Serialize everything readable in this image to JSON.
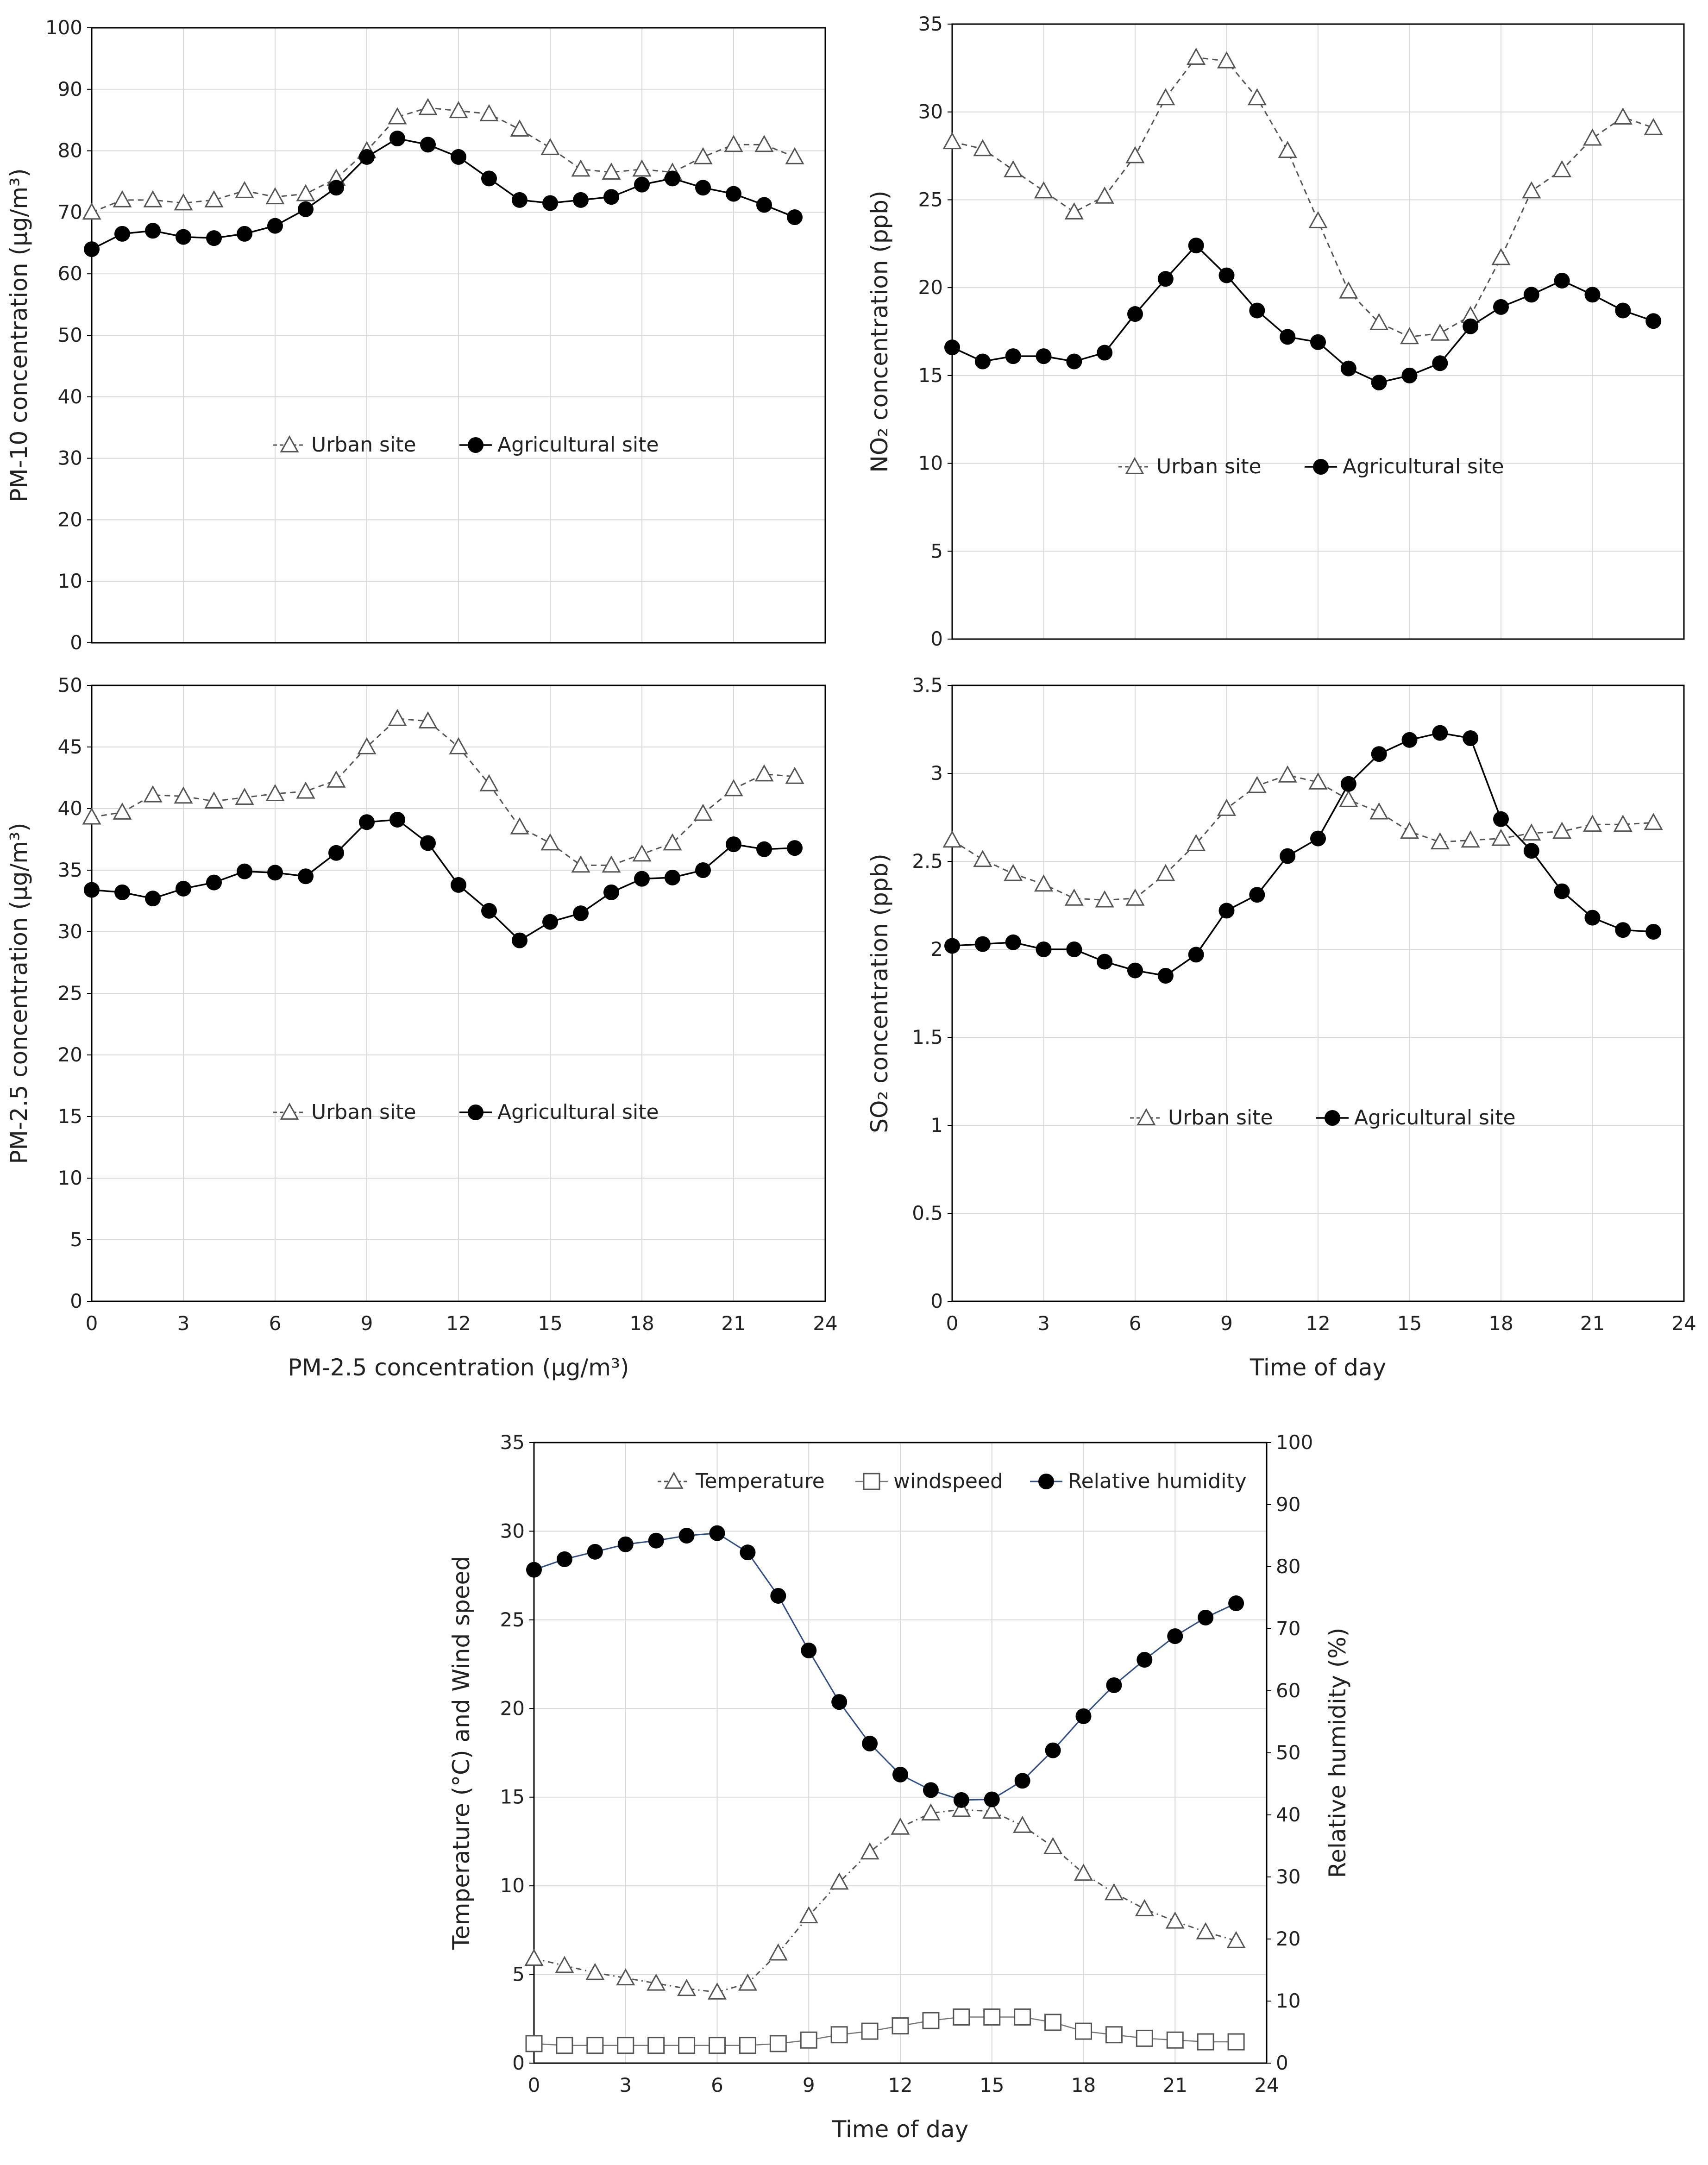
{
  "chart_data": [
    {
      "type": "line",
      "id": "pm10",
      "ylabel": "PM-10 concentration (µg/m³)",
      "xlabel": "",
      "ylim": [
        0,
        100
      ],
      "yticks": [
        0,
        10,
        20,
        30,
        40,
        50,
        60,
        70,
        80,
        90,
        100
      ],
      "xlim": [
        0,
        24
      ],
      "xticks": [],
      "legend": "middle",
      "series": [
        {
          "name": "Urban site",
          "marker": "triangle",
          "line": "dashed",
          "x": [
            0,
            1,
            2,
            3,
            4,
            5,
            6,
            7,
            8,
            9,
            10,
            11,
            12,
            13,
            14,
            15,
            16,
            17,
            18,
            19,
            20,
            21,
            22,
            23
          ],
          "values": [
            70,
            72,
            72,
            71.5,
            72,
            73.5,
            72.5,
            73,
            75.5,
            80,
            85.5,
            87,
            86.5,
            86,
            83.5,
            80.5,
            77,
            76.5,
            77,
            76.5,
            79,
            81,
            81,
            79
          ]
        },
        {
          "name": "Agricultural site",
          "marker": "circle",
          "line": "solid",
          "x": [
            0,
            1,
            2,
            3,
            4,
            5,
            6,
            7,
            8,
            9,
            10,
            11,
            12,
            13,
            14,
            15,
            16,
            17,
            18,
            19,
            20,
            21,
            22,
            23
          ],
          "values": [
            64,
            66.5,
            67,
            66,
            65.8,
            66.5,
            67.8,
            70.5,
            74,
            79,
            82,
            81,
            79,
            75.5,
            72,
            71.5,
            72,
            72.5,
            74.5,
            75.5,
            74,
            73,
            71.2,
            69.2
          ]
        }
      ]
    },
    {
      "type": "line",
      "id": "no2",
      "ylabel": "NO₂ concentration (ppb)",
      "xlabel": "",
      "ylim": [
        0,
        35
      ],
      "yticks": [
        0,
        5,
        10,
        15,
        20,
        25,
        30,
        35
      ],
      "xlim": [
        0,
        24
      ],
      "xticks": [],
      "legend": "middle",
      "series": [
        {
          "name": "Urban site",
          "marker": "triangle",
          "line": "dashed",
          "x": [
            0,
            1,
            2,
            3,
            4,
            5,
            6,
            7,
            8,
            9,
            10,
            11,
            12,
            13,
            14,
            15,
            16,
            17,
            18,
            19,
            20,
            21,
            22,
            23
          ],
          "values": [
            28.3,
            27.9,
            26.7,
            25.5,
            24.3,
            25.2,
            27.5,
            30.8,
            33.1,
            32.9,
            30.8,
            27.8,
            23.8,
            19.8,
            18,
            17.2,
            17.4,
            18.4,
            21.7,
            25.5,
            26.7,
            28.5,
            29.7,
            29.1
          ]
        },
        {
          "name": "Agricultural site",
          "marker": "circle",
          "line": "solid",
          "x": [
            0,
            1,
            2,
            3,
            4,
            5,
            6,
            7,
            8,
            9,
            10,
            11,
            12,
            13,
            14,
            15,
            16,
            17,
            18,
            19,
            20,
            21,
            22,
            23
          ],
          "values": [
            16.6,
            15.8,
            16.1,
            16.1,
            15.8,
            16.3,
            18.5,
            20.5,
            22.4,
            20.7,
            18.7,
            17.2,
            16.9,
            15.4,
            14.6,
            15,
            15.7,
            17.8,
            18.9,
            19.6,
            20.4,
            19.6,
            18.7,
            18.1
          ]
        }
      ]
    },
    {
      "type": "line",
      "id": "pm25",
      "ylabel": "PM-2.5 concentration (µg/m³)",
      "xlabel": "PM-2.5 concentration (µg/m³)",
      "ylim": [
        0,
        50
      ],
      "yticks": [
        0,
        5,
        10,
        15,
        20,
        25,
        30,
        35,
        40,
        45,
        50
      ],
      "xlim": [
        0,
        24
      ],
      "xticks": [
        0,
        3,
        6,
        9,
        12,
        15,
        18,
        21,
        24
      ],
      "legend": "middle",
      "series": [
        {
          "name": "Urban site",
          "marker": "triangle",
          "line": "dashed",
          "x": [
            0,
            1,
            2,
            3,
            4,
            5,
            6,
            7,
            8,
            9,
            10,
            11,
            12,
            13,
            14,
            15,
            16,
            17,
            18,
            19,
            20,
            21,
            22,
            23
          ],
          "values": [
            39.3,
            39.7,
            41.1,
            41,
            40.6,
            40.9,
            41.2,
            41.4,
            42.3,
            45,
            47.3,
            47.1,
            45,
            42,
            38.5,
            37.2,
            35.4,
            35.4,
            36.3,
            37.2,
            39.6,
            41.6,
            42.8,
            42.6
          ]
        },
        {
          "name": "Agricultural site",
          "marker": "circle",
          "line": "solid",
          "x": [
            0,
            1,
            2,
            3,
            4,
            5,
            6,
            7,
            8,
            9,
            10,
            11,
            12,
            13,
            14,
            15,
            16,
            17,
            18,
            19,
            20,
            21,
            22,
            23
          ],
          "values": [
            33.4,
            33.2,
            32.7,
            33.5,
            34,
            34.9,
            34.8,
            34.5,
            36.4,
            38.9,
            39.1,
            37.2,
            33.8,
            31.7,
            29.3,
            30.8,
            31.5,
            33.2,
            34.3,
            34.4,
            35,
            37.1,
            36.7,
            36.8
          ]
        }
      ]
    },
    {
      "type": "line",
      "id": "so2",
      "ylabel": "SO₂ concentration (ppb)",
      "xlabel": "Time of day",
      "ylim": [
        0,
        3.5
      ],
      "yticks": [
        0,
        0.5,
        1,
        1.5,
        2,
        2.5,
        3,
        3.5
      ],
      "xlim": [
        0,
        24
      ],
      "xticks": [
        0,
        3,
        6,
        9,
        12,
        15,
        18,
        21,
        24
      ],
      "legend": "middle",
      "series": [
        {
          "name": "Urban site",
          "marker": "triangle",
          "line": "dashed",
          "x": [
            0,
            1,
            2,
            3,
            4,
            5,
            6,
            7,
            8,
            9,
            10,
            11,
            12,
            13,
            14,
            15,
            16,
            17,
            18,
            19,
            20,
            21,
            22,
            23
          ],
          "values": [
            2.62,
            2.51,
            2.43,
            2.37,
            2.29,
            2.28,
            2.29,
            2.43,
            2.6,
            2.8,
            2.93,
            2.99,
            2.95,
            2.85,
            2.78,
            2.67,
            2.61,
            2.62,
            2.63,
            2.66,
            2.67,
            2.71,
            2.71,
            2.72
          ]
        },
        {
          "name": "Agricultural site",
          "marker": "circle",
          "line": "solid",
          "x": [
            0,
            1,
            2,
            3,
            4,
            5,
            6,
            7,
            8,
            9,
            10,
            11,
            12,
            13,
            14,
            15,
            16,
            17,
            18,
            19,
            20,
            21,
            22,
            23
          ],
          "values": [
            2.02,
            2.03,
            2.04,
            2,
            2,
            1.93,
            1.88,
            1.85,
            1.97,
            2.22,
            2.31,
            2.53,
            2.63,
            2.94,
            3.11,
            3.19,
            3.23,
            3.2,
            2.74,
            2.56,
            2.33,
            2.18,
            2.11,
            2.1
          ]
        }
      ]
    },
    {
      "type": "line",
      "id": "met",
      "ylabel": "Temperature (°C) and Wind speed",
      "y2label": "Relative humidity (%)",
      "xlabel": "Time of day",
      "ylim": [
        0,
        35
      ],
      "yticks": [
        0,
        5,
        10,
        15,
        20,
        25,
        30,
        35
      ],
      "y2lim": [
        0,
        100
      ],
      "y2ticks": [
        0,
        10,
        20,
        30,
        40,
        50,
        60,
        70,
        80,
        90,
        100
      ],
      "xlim": [
        0,
        24
      ],
      "xticks": [
        0,
        3,
        6,
        9,
        12,
        15,
        18,
        21,
        24
      ],
      "legend": "top",
      "series": [
        {
          "name": "Temperature",
          "marker": "triangle",
          "line": "dashdot",
          "axis": "left",
          "x": [
            0,
            1,
            2,
            3,
            4,
            5,
            6,
            7,
            8,
            9,
            10,
            11,
            12,
            13,
            14,
            15,
            16,
            17,
            18,
            19,
            20,
            21,
            22,
            23
          ],
          "values": [
            5.9,
            5.5,
            5.1,
            4.8,
            4.5,
            4.2,
            4,
            4.5,
            6.2,
            8.3,
            10.2,
            11.9,
            13.3,
            14.1,
            14.3,
            14.2,
            13.4,
            12.2,
            10.7,
            9.6,
            8.7,
            8,
            7.4,
            6.9
          ]
        },
        {
          "name": "windspeed",
          "marker": "square",
          "line": "solid-light",
          "axis": "left",
          "x": [
            0,
            1,
            2,
            3,
            4,
            5,
            6,
            7,
            8,
            9,
            10,
            11,
            12,
            13,
            14,
            15,
            16,
            17,
            18,
            19,
            20,
            21,
            22,
            23
          ],
          "values": [
            1.1,
            1,
            1,
            1,
            1,
            1,
            1,
            1,
            1.1,
            1.3,
            1.6,
            1.8,
            2.1,
            2.4,
            2.6,
            2.6,
            2.6,
            2.3,
            1.8,
            1.6,
            1.4,
            1.3,
            1.2,
            1.2
          ]
        },
        {
          "name": "Relative humidity",
          "marker": "circle",
          "line": "solid-blue",
          "axis": "right",
          "x": [
            0,
            1,
            2,
            3,
            4,
            5,
            6,
            7,
            8,
            9,
            10,
            11,
            12,
            13,
            14,
            15,
            16,
            17,
            18,
            19,
            20,
            21,
            22,
            23
          ],
          "values": [
            79.5,
            81.2,
            82.4,
            83.6,
            84.2,
            85,
            85.4,
            82.3,
            75.3,
            66.5,
            58.2,
            51.5,
            46.5,
            44,
            42.4,
            42.5,
            45.5,
            50.4,
            55.9,
            60.9,
            65,
            68.8,
            71.8,
            74.1
          ]
        }
      ]
    }
  ]
}
